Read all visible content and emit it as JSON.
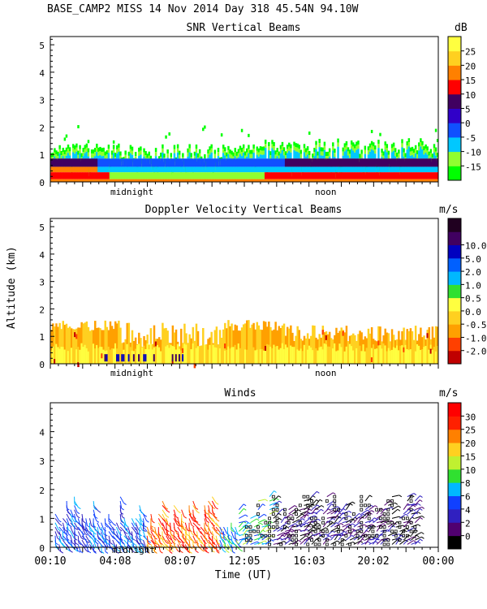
{
  "header": "BASE_CAMP2 MISS  14 Nov 2014 Day 318 45.54N  94.10W",
  "ylabel": "Altitude (km)",
  "xlabel": "Time (UT)",
  "time_ticks": [
    "00:10",
    "04:08",
    "08:07",
    "12:05",
    "16:03",
    "20:02",
    "00:00"
  ],
  "chart_data": [
    {
      "type": "heatmap",
      "title": "SNR Vertical Beams",
      "ylabel": "Altitude (km)",
      "ylim": [
        0,
        5.3
      ],
      "yticks": [
        "0",
        "1",
        "2",
        "3",
        "4",
        "5"
      ],
      "markers": [
        "midnight",
        "noon"
      ],
      "colorbar": {
        "unit": "dB",
        "labels": [
          "-15",
          "-10",
          "-5",
          "0",
          "5",
          "10",
          "15",
          "20",
          "25"
        ],
        "colors": [
          "#00ff00",
          "#90ff30",
          "#00c8ff",
          "#1050ff",
          "#3000c8",
          "#400060",
          "#ff0000",
          "#ff8000",
          "#ffd020",
          "#ffff40"
        ]
      }
    },
    {
      "type": "heatmap",
      "title": "Doppler Velocity Vertical Beams",
      "ylabel": "Altitude (km)",
      "ylim": [
        0,
        5.3
      ],
      "yticks": [
        "0",
        "1",
        "2",
        "3",
        "4",
        "5"
      ],
      "markers": [
        "midnight",
        "noon"
      ],
      "colorbar": {
        "unit": "m/s",
        "labels": [
          "-2.0",
          "-1.0",
          "-0.5",
          "0.0",
          "0.5",
          "1.0",
          "2.0",
          "5.0",
          "10.0"
        ],
        "colors": [
          "#c00000",
          "#ff4000",
          "#ffa000",
          "#ffd020",
          "#ffff40",
          "#30e030",
          "#00b8ff",
          "#0060ff",
          "#0000c0",
          "#400060",
          "#200020"
        ]
      }
    },
    {
      "type": "scatter",
      "title": "Winds",
      "ylabel": "Altitude (km)",
      "xlabel": "Time (UT)",
      "ylim": [
        0,
        5
      ],
      "yticks": [
        "0",
        "1",
        "2",
        "3",
        "4"
      ],
      "xticks": [
        "00:10",
        "04:08",
        "08:07",
        "12:05",
        "16:03",
        "20:02",
        "00:00"
      ],
      "markers": [
        "midnight"
      ],
      "colorbar": {
        "unit": "m/s",
        "labels": [
          "0",
          "2",
          "4",
          "6",
          "8",
          "10",
          "15",
          "20",
          "25",
          "30"
        ],
        "colors": [
          "#000000",
          "#500070",
          "#3020c0",
          "#1040ff",
          "#00b8ff",
          "#30e030",
          "#c0f030",
          "#ffd020",
          "#ff8000",
          "#ff2000",
          "#ff0000"
        ]
      }
    }
  ]
}
